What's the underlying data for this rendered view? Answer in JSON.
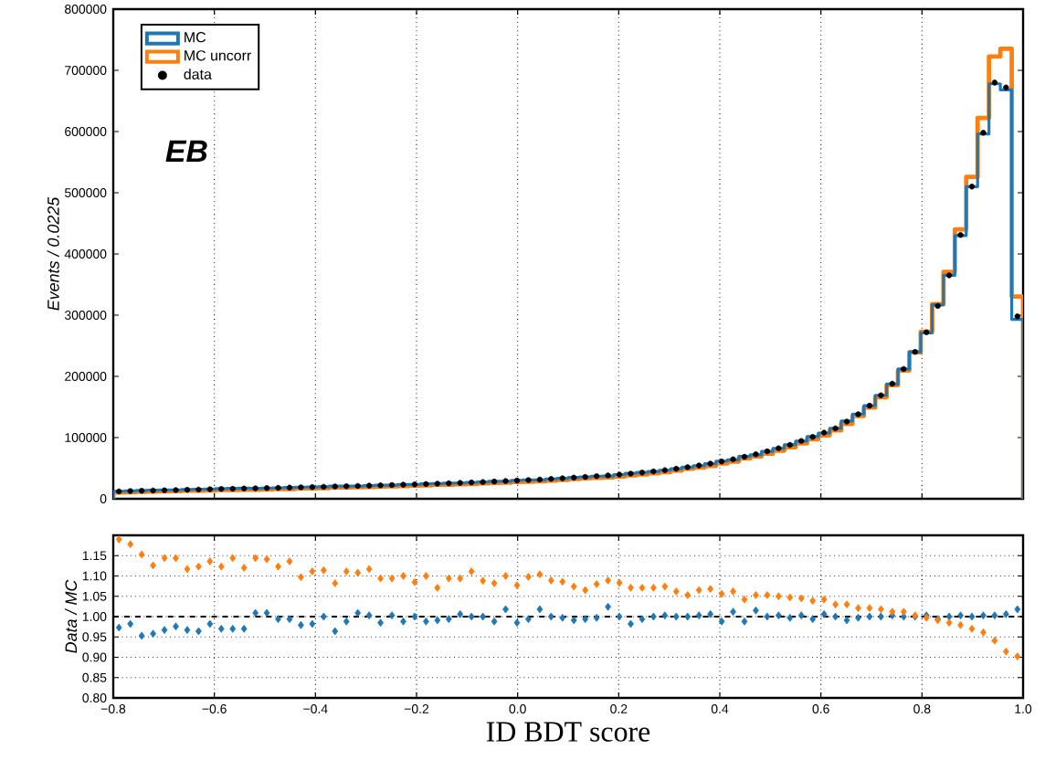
{
  "chart_data": [
    {
      "type": "histogram",
      "ylabel": "Events / 0.0225",
      "annotations": [
        "EB"
      ],
      "legend": "top left",
      "grid": "x",
      "tick_labels": "y",
      "xlim": [
        -0.8,
        1.0
      ],
      "xticks": [
        {
          "value": -0.8,
          "label": null
        },
        {
          "value": -0.6,
          "label": null
        },
        {
          "value": -0.4,
          "label": null
        },
        {
          "value": -0.2,
          "label": null
        },
        {
          "value": 0.0,
          "label": null
        },
        {
          "value": 0.2,
          "label": null
        },
        {
          "value": 0.4,
          "label": null
        },
        {
          "value": 0.6,
          "label": null
        },
        {
          "value": 0.8,
          "label": null
        },
        {
          "value": 1.0,
          "label": null
        }
      ],
      "ylim": [
        0,
        800000
      ],
      "yticks": [
        0,
        100000,
        200000,
        300000,
        400000,
        500000,
        600000,
        700000,
        800000
      ],
      "bins": [
        -0.8,
        -0.7775,
        -0.755,
        -0.7325,
        -0.71,
        -0.6875,
        -0.665,
        -0.6425,
        -0.62,
        -0.5975,
        -0.575,
        -0.5525,
        -0.53,
        -0.5075,
        -0.485,
        -0.4625,
        -0.44,
        -0.4175,
        -0.395,
        -0.3725,
        -0.35,
        -0.3275,
        -0.305,
        -0.2825,
        -0.26,
        -0.2375,
        -0.215,
        -0.1925,
        -0.17,
        -0.1475,
        -0.125,
        -0.1025,
        -0.08,
        -0.0575,
        -0.035,
        -0.0125,
        0.01,
        0.0325,
        0.055,
        0.0775,
        0.1,
        0.1225,
        0.145,
        0.1675,
        0.19,
        0.2125,
        0.235,
        0.2575,
        0.28,
        0.3025,
        0.325,
        0.3475,
        0.37,
        0.3925,
        0.415,
        0.4375,
        0.46,
        0.4825,
        0.505,
        0.5275,
        0.55,
        0.5725,
        0.595,
        0.6175,
        0.64,
        0.6625,
        0.685,
        0.7075,
        0.73,
        0.7525,
        0.775,
        0.7975,
        0.82,
        0.8425,
        0.865,
        0.8875,
        0.91,
        0.9325,
        0.955,
        0.9775,
        1.0
      ],
      "series": [
        {
          "name": "MC",
          "color": "#1f77b4",
          "values": [
            12300,
            12700,
            13600,
            14000,
            14300,
            14500,
            15100,
            15600,
            15800,
            16500,
            16800,
            17200,
            16800,
            17200,
            17900,
            18300,
            19000,
            19300,
            19500,
            20700,
            20600,
            20700,
            21300,
            22200,
            22300,
            23200,
            23400,
            24300,
            24800,
            25400,
            25700,
            26600,
            27300,
            28400,
            28400,
            30200,
            30700,
            30800,
            32400,
            33500,
            34800,
            35800,
            36900,
            37200,
            39500,
            41700,
            43000,
            44600,
            46600,
            49000,
            51500,
            54100,
            57100,
            61500,
            63700,
            69300,
            71700,
            77500,
            82300,
            88300,
            94200,
            101600,
            107400,
            115000,
            127100,
            138400,
            152000,
            169000,
            187400,
            212000,
            240000,
            271000,
            317000,
            365000,
            430000,
            510000,
            596000,
            678000,
            668000,
            293000
          ]
        },
        {
          "name": "MC uncorr",
          "color": "#ff7f0e",
          "values": [
            10100,
            10600,
            11300,
            11900,
            12100,
            12400,
            13100,
            13400,
            13600,
            14200,
            14200,
            14900,
            14900,
            15200,
            15900,
            16000,
            17000,
            17100,
            17500,
            18500,
            18400,
            18900,
            19200,
            20000,
            20500,
            20800,
            21600,
            21800,
            23000,
            23000,
            23700,
            23900,
            25100,
            26000,
            26300,
            27600,
            27800,
            28400,
            29800,
            30800,
            32100,
            33400,
            34100,
            35000,
            36500,
            38300,
            39900,
            41600,
            43500,
            46100,
            48900,
            51000,
            53700,
            57600,
            60700,
            65700,
            69100,
            73600,
            78600,
            84000,
            90400,
            97200,
            103600,
            111700,
            122300,
            135200,
            148900,
            166000,
            185800,
            209500,
            239300,
            272800,
            317900,
            370600,
            440200,
            525800,
            622300,
            722600,
            735200,
            330400
          ]
        },
        {
          "name": "data",
          "type": "scatter",
          "color": "#000000",
          "marker": "circle",
          "x": [
            -0.78875,
            -0.76625,
            -0.74375,
            -0.72125,
            -0.69875,
            -0.67625,
            -0.65375,
            -0.63125,
            -0.60875,
            -0.58625,
            -0.56375,
            -0.54125,
            -0.51875,
            -0.49625,
            -0.47375,
            -0.45125,
            -0.42875,
            -0.40625,
            -0.38375,
            -0.36125,
            -0.33875,
            -0.31625,
            -0.29375,
            -0.27125,
            -0.24875,
            -0.22625,
            -0.20375,
            -0.18125,
            -0.15875,
            -0.13625,
            -0.11375,
            -0.09125,
            -0.06875,
            -0.04625,
            -0.02375,
            -0.00125,
            0.02125,
            0.04375,
            0.06625,
            0.08875,
            0.11125,
            0.13375,
            0.15625,
            0.17875,
            0.20125,
            0.22375,
            0.24625,
            0.26875,
            0.29125,
            0.31375,
            0.33625,
            0.35875,
            0.38125,
            0.40375,
            0.42625,
            0.44875,
            0.47125,
            0.49375,
            0.51625,
            0.53875,
            0.56125,
            0.58375,
            0.60625,
            0.62875,
            0.65125,
            0.67375,
            0.69625,
            0.71875,
            0.74125,
            0.76375,
            0.78625,
            0.80875,
            0.83125,
            0.85375,
            0.87625,
            0.89875,
            0.92125,
            0.94375,
            0.96625,
            0.98875
          ],
          "values": [
            12000,
            12500,
            13000,
            13400,
            13800,
            14200,
            14600,
            15000,
            15500,
            16000,
            16300,
            16700,
            17000,
            17400,
            17800,
            18200,
            18600,
            19000,
            19500,
            20000,
            20400,
            20900,
            21400,
            21900,
            22400,
            22900,
            23400,
            24000,
            24600,
            25200,
            25900,
            26600,
            27300,
            28100,
            28900,
            29700,
            30500,
            31400,
            32400,
            33400,
            34500,
            35600,
            36800,
            38100,
            39500,
            41000,
            42700,
            44600,
            46700,
            49000,
            51500,
            54300,
            57400,
            60800,
            64500,
            68500,
            72800,
            77500,
            82500,
            88000,
            94500,
            101000,
            108000,
            115000,
            126000,
            138000,
            152000,
            169000,
            188000,
            212000,
            240000,
            272000,
            315000,
            365000,
            431000,
            510000,
            598000,
            680000,
            672000,
            298000
          ]
        }
      ]
    },
    {
      "type": "scatter",
      "xlabel": "ID BDT score",
      "ylabel": "Data / MC",
      "grid": true,
      "marker": "diamond",
      "xlim": [
        -0.8,
        1.0
      ],
      "xticks": [
        {
          "value": -0.8,
          "label": "−0.8"
        },
        {
          "value": -0.6,
          "label": "−0.6"
        },
        {
          "value": -0.4,
          "label": "−0.4"
        },
        {
          "value": -0.2,
          "label": "−0.2"
        },
        {
          "value": 0.0,
          "label": "0.0"
        },
        {
          "value": 0.2,
          "label": "0.2"
        },
        {
          "value": 0.4,
          "label": "0.4"
        },
        {
          "value": 0.6,
          "label": "0.6"
        },
        {
          "value": 0.8,
          "label": "0.8"
        },
        {
          "value": 1.0,
          "label": "1.0"
        }
      ],
      "ylim": [
        0.8,
        1.2
      ],
      "yticks": [
        {
          "value": 0.8,
          "label": "0.80"
        },
        {
          "value": 0.85,
          "label": "0.85"
        },
        {
          "value": 0.9,
          "label": "0.90"
        },
        {
          "value": 0.95,
          "label": "0.95"
        },
        {
          "value": 1.0,
          "label": "1.00"
        },
        {
          "value": 1.05,
          "label": "1.05"
        },
        {
          "value": 1.1,
          "label": "1.10"
        },
        {
          "value": 1.15,
          "label": "1.15"
        }
      ],
      "ref_lines": [
        {
          "axis": "y",
          "value": 1.0,
          "color": "#000000",
          "line_style": "dashed"
        }
      ],
      "x": [
        -0.78875,
        -0.76625,
        -0.74375,
        -0.72125,
        -0.69875,
        -0.67625,
        -0.65375,
        -0.63125,
        -0.60875,
        -0.58625,
        -0.56375,
        -0.54125,
        -0.51875,
        -0.49625,
        -0.47375,
        -0.45125,
        -0.42875,
        -0.40625,
        -0.38375,
        -0.36125,
        -0.33875,
        -0.31625,
        -0.29375,
        -0.27125,
        -0.24875,
        -0.22625,
        -0.20375,
        -0.18125,
        -0.15875,
        -0.13625,
        -0.11375,
        -0.09125,
        -0.06875,
        -0.04625,
        -0.02375,
        -0.00125,
        0.02125,
        0.04375,
        0.06625,
        0.08875,
        0.11125,
        0.13375,
        0.15625,
        0.17875,
        0.20125,
        0.22375,
        0.24625,
        0.26875,
        0.29125,
        0.31375,
        0.33625,
        0.35875,
        0.38125,
        0.40375,
        0.42625,
        0.44875,
        0.47125,
        0.49375,
        0.51625,
        0.53875,
        0.56125,
        0.58375,
        0.60625,
        0.62875,
        0.65125,
        0.67375,
        0.69625,
        0.71875,
        0.74125,
        0.76375,
        0.78625,
        0.80875,
        0.83125,
        0.85375,
        0.87625,
        0.89875,
        0.92125,
        0.94375,
        0.96625,
        0.98875
      ],
      "series": [
        {
          "color": "#1f77b4",
          "values": [
            0.973,
            0.982,
            0.953,
            0.958,
            0.967,
            0.976,
            0.967,
            0.964,
            0.982,
            0.97,
            0.97,
            0.97,
            1.009,
            1.009,
            0.994,
            0.994,
            0.979,
            0.982,
            1.0,
            0.964,
            0.988,
            1.009,
            1.003,
            0.985,
            1.003,
            0.988,
            1.0,
            0.988,
            0.991,
            0.994,
            1.006,
            1.0,
            1.0,
            0.988,
            1.018,
            0.985,
            0.994,
            1.018,
            1.0,
            0.997,
            0.991,
            0.994,
            0.997,
            1.024,
            1.0,
            0.982,
            0.994,
            1.0,
            1.003,
            1.0,
            1.0,
            1.003,
            1.006,
            0.988,
            1.012,
            0.988,
            1.015,
            1.0,
            1.003,
            0.997,
            1.003,
            0.994,
            1.006,
            1.0,
            0.991,
            0.997,
            1.0,
            1.0,
            1.003,
            1.0,
            1.0,
            1.003,
            0.994,
            1.0,
            1.003,
            1.0,
            1.003,
            1.003,
            1.006,
            1.018
          ]
        },
        {
          "color": "#ff7f0e",
          "values": [
            1.19,
            1.178,
            1.153,
            1.126,
            1.144,
            1.144,
            1.117,
            1.123,
            1.136,
            1.123,
            1.144,
            1.12,
            1.144,
            1.141,
            1.123,
            1.136,
            1.097,
            1.111,
            1.114,
            1.082,
            1.111,
            1.108,
            1.117,
            1.094,
            1.094,
            1.1,
            1.085,
            1.1,
            1.071,
            1.094,
            1.094,
            1.111,
            1.088,
            1.082,
            1.1,
            1.077,
            1.098,
            1.104,
            1.089,
            1.086,
            1.074,
            1.065,
            1.08,
            1.089,
            1.083,
            1.071,
            1.071,
            1.071,
            1.074,
            1.062,
            1.053,
            1.065,
            1.068,
            1.056,
            1.062,
            1.042,
            1.053,
            1.053,
            1.05,
            1.047,
            1.045,
            1.039,
            1.042,
            1.03,
            1.03,
            1.021,
            1.021,
            1.018,
            1.012,
            1.012,
            1.003,
            0.997,
            0.991,
            0.985,
            0.979,
            0.97,
            0.961,
            0.941,
            0.914,
            0.902
          ]
        }
      ]
    }
  ]
}
